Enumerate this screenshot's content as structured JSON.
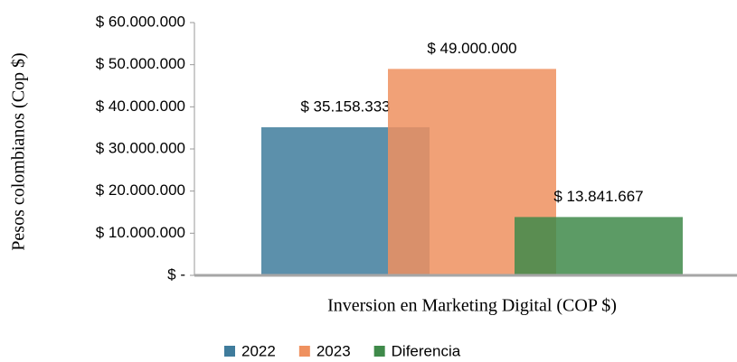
{
  "chart_data": {
    "type": "bar",
    "x_label": "Inversion en Marketing Digital (COP $)",
    "y_label": "Pesos colombianos (Cop $)",
    "categories": [
      null
    ],
    "series": [
      {
        "name": "2022",
        "color": "#3f7c9c",
        "values": [
          35158333
        ],
        "value_labels": [
          "$ 35.158.333"
        ]
      },
      {
        "name": "2023",
        "color": "#ef915f",
        "values": [
          49000000
        ],
        "value_labels": [
          "$ 49.000.000"
        ]
      },
      {
        "name": "Diferencia",
        "color": "#3f8a4a",
        "values": [
          13841667
        ],
        "value_labels": [
          "$ 13.841.667"
        ]
      }
    ],
    "ylim": [
      0,
      60000000
    ],
    "yticks": [
      {
        "value": 0,
        "label": "$ -"
      },
      {
        "value": 10000000,
        "label": "$ 10.000.000"
      },
      {
        "value": 20000000,
        "label": "$ 20.000.000"
      },
      {
        "value": 30000000,
        "label": "$ 30.000.000"
      },
      {
        "value": 40000000,
        "label": "$ 40.000.000"
      },
      {
        "value": 50000000,
        "label": "$ 50.000.000"
      },
      {
        "value": 60000000,
        "label": "$ 60.000.000"
      }
    ],
    "grid": false,
    "legend": "bottom"
  }
}
